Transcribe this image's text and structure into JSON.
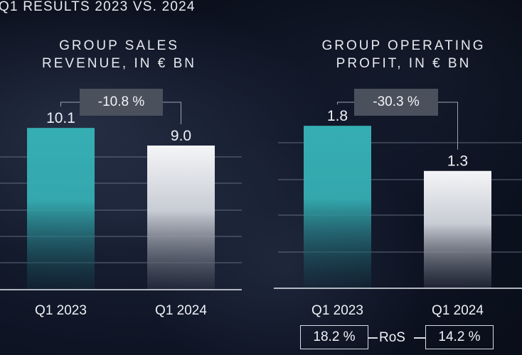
{
  "page": {
    "title": "Q1 RESULTS 2023 VS. 2024"
  },
  "colors": {
    "teal": "#35aeb3",
    "white_bar": "#f4f5f7",
    "grid": "#7a8394",
    "box_bg": "#4a505c"
  },
  "chart_data": [
    {
      "type": "bar",
      "title_line1": "GROUP SALES",
      "title_line2": "REVENUE, IN € BN",
      "categories": [
        "Q1 2023",
        "Q1 2024"
      ],
      "values": [
        10.1,
        9.0
      ],
      "value_labels": [
        "10.1",
        "9.0"
      ],
      "change_label": "-10.8 %",
      "ylim": [
        0,
        13.3
      ],
      "grid": true
    },
    {
      "type": "bar",
      "title_line1": "GROUP OPERATING",
      "title_line2": "PROFIT, IN € BN",
      "categories": [
        "Q1 2023",
        "Q1 2024"
      ],
      "values": [
        1.8,
        1.3
      ],
      "value_labels": [
        "1.8",
        "1.3"
      ],
      "change_label": "-30.3 %",
      "ylim": [
        0,
        2.36
      ],
      "grid": true,
      "ros": {
        "label": "RoS",
        "values": [
          "18.2 %",
          "14.2 %"
        ]
      }
    }
  ]
}
